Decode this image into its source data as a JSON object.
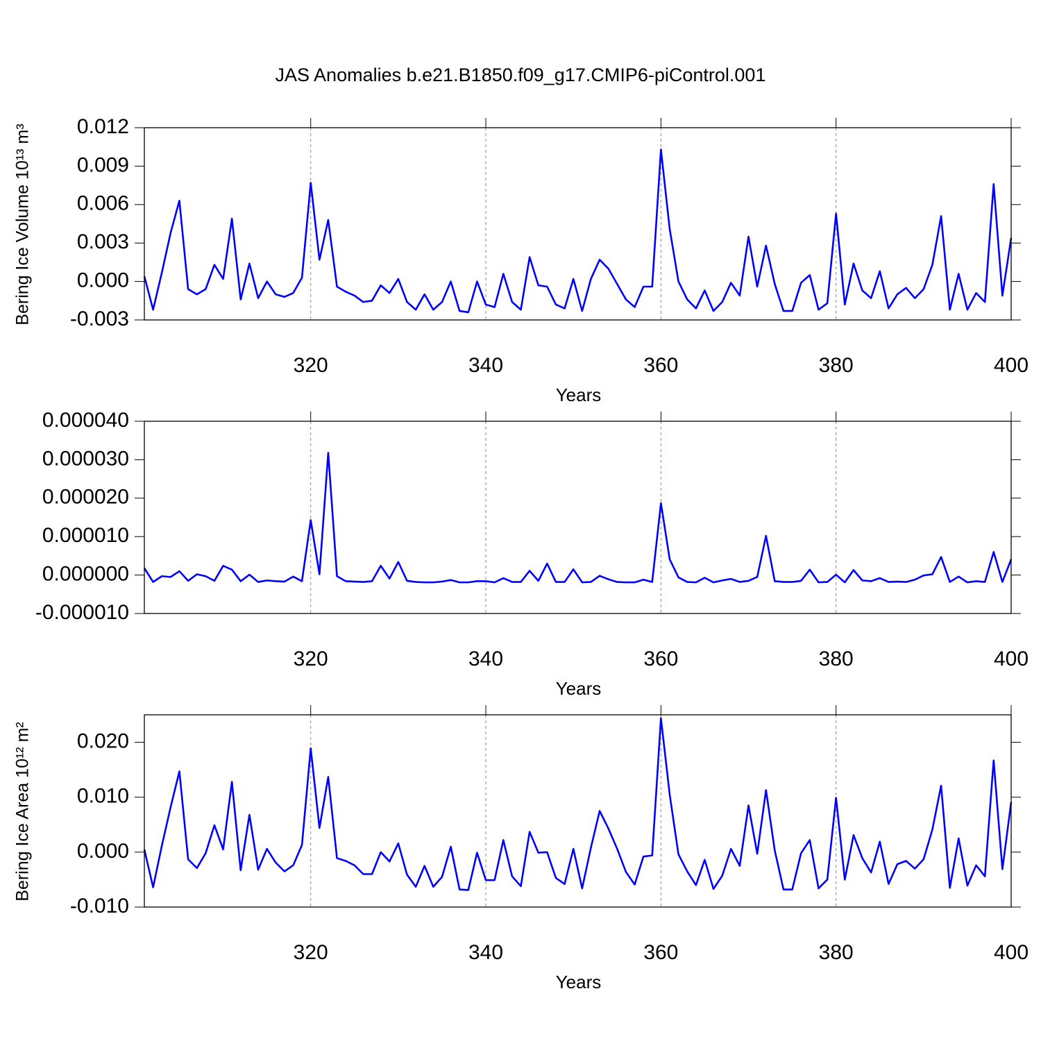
{
  "chart_data": [
    {
      "type": "line",
      "title": "JAS Anomalies b.e21.B1850.f09_g17.CMIP6-piControl.001",
      "x_label": "Years",
      "y_label": "Bering Ice Volume 10¹³ m³",
      "color": "#0000ff",
      "grid": "x",
      "xlim": [
        301,
        400
      ],
      "xticks": [
        320,
        340,
        360,
        380,
        400
      ],
      "ylim": [
        -0.003,
        0.012
      ],
      "yticks": [
        {
          "value": -0.003,
          "label": "-0.003"
        },
        {
          "value": 0,
          "label": "0.000"
        },
        0.003,
        0.006,
        0.009,
        0.012
      ],
      "x": [
        301,
        302,
        303,
        304,
        305,
        306,
        307,
        308,
        309,
        310,
        311,
        312,
        313,
        314,
        315,
        316,
        317,
        318,
        319,
        320,
        321,
        322,
        323,
        324,
        325,
        326,
        327,
        328,
        329,
        330,
        331,
        332,
        333,
        334,
        335,
        336,
        337,
        338,
        339,
        340,
        341,
        342,
        343,
        344,
        345,
        346,
        347,
        348,
        349,
        350,
        351,
        352,
        353,
        354,
        355,
        356,
        357,
        358,
        359,
        360,
        361,
        362,
        363,
        364,
        365,
        366,
        367,
        368,
        369,
        370,
        371,
        372,
        373,
        374,
        375,
        376,
        377,
        378,
        379,
        380,
        381,
        382,
        383,
        384,
        385,
        386,
        387,
        388,
        389,
        390,
        391,
        392,
        393,
        394,
        395,
        396,
        397,
        398,
        399,
        400
      ],
      "values": [
        0.0004,
        -0.0022,
        0.0007,
        0.0038,
        0.0063,
        -0.0006,
        -0.001,
        -0.0006,
        0.0013,
        0.0002,
        0.0049,
        -0.0014,
        0.0014,
        -0.0013,
        0.0,
        -0.001,
        -0.0012,
        -0.0009,
        0.0003,
        0.0077,
        0.0017,
        0.0048,
        -0.0004,
        -0.0008,
        -0.0011,
        -0.0016,
        -0.0015,
        -0.0003,
        -0.0009,
        0.0002,
        -0.0016,
        -0.0022,
        -0.001,
        -0.0022,
        -0.0016,
        0.0,
        -0.0023,
        -0.0024,
        0.0,
        -0.0018,
        -0.002,
        0.0006,
        -0.0016,
        -0.0022,
        0.0019,
        -0.0003,
        -0.0004,
        -0.0018,
        -0.0021,
        0.0002,
        -0.0023,
        0.0002,
        0.0017,
        0.001,
        -0.0002,
        -0.0014,
        -0.002,
        -0.0004,
        -0.0004,
        0.0103,
        0.0041,
        0.0,
        -0.0014,
        -0.0021,
        -0.0007,
        -0.0023,
        -0.0016,
        -0.0001,
        -0.0011,
        0.0035,
        -0.0004,
        0.0028,
        -0.0002,
        -0.0023,
        -0.0023,
        -0.0001,
        0.0005,
        -0.0022,
        -0.0017,
        0.0053,
        -0.0018,
        0.0014,
        -0.0007,
        -0.0013,
        0.0008,
        -0.0021,
        -0.001,
        -0.0005,
        -0.0013,
        -0.0006,
        0.0013,
        0.0051,
        -0.0022,
        0.0006,
        -0.0022,
        -0.0009,
        -0.0016,
        0.0076,
        -0.0011,
        0.0034
      ]
    },
    {
      "type": "line",
      "x_label": "Years",
      "color": "#0000ff",
      "grid": "x",
      "xlim": [
        301,
        400
      ],
      "xticks": [
        320,
        340,
        360,
        380,
        400
      ],
      "ylim": [
        -1e-05,
        4e-05
      ],
      "yticks": [
        {
          "value": -1e-05,
          "label": "-0.000010"
        },
        {
          "value": 0,
          "label": "0.000000"
        },
        {
          "value": 1e-05,
          "label": "0.000010"
        },
        {
          "value": 2e-05,
          "label": "0.000020"
        },
        {
          "value": 3e-05,
          "label": "0.000030"
        },
        {
          "value": 4e-05,
          "label": "0.000040"
        }
      ],
      "x": [
        301,
        302,
        303,
        304,
        305,
        306,
        307,
        308,
        309,
        310,
        311,
        312,
        313,
        314,
        315,
        316,
        317,
        318,
        319,
        320,
        321,
        322,
        323,
        324,
        325,
        326,
        327,
        328,
        329,
        330,
        331,
        332,
        333,
        334,
        335,
        336,
        337,
        338,
        339,
        340,
        341,
        342,
        343,
        344,
        345,
        346,
        347,
        348,
        349,
        350,
        351,
        352,
        353,
        354,
        355,
        356,
        357,
        358,
        359,
        360,
        361,
        362,
        363,
        364,
        365,
        366,
        367,
        368,
        369,
        370,
        371,
        372,
        373,
        374,
        375,
        376,
        377,
        378,
        379,
        380,
        381,
        382,
        383,
        384,
        385,
        386,
        387,
        388,
        389,
        390,
        391,
        392,
        393,
        394,
        395,
        396,
        397,
        398,
        399,
        400
      ],
      "values": [
        1.8e-06,
        -1.8e-06,
        -3e-07,
        -5e-07,
        1e-06,
        -1.5e-06,
        2e-07,
        -3e-07,
        -1.5e-06,
        2.4e-06,
        1.4e-06,
        -1.6e-06,
        1e-07,
        -1.8e-06,
        -1.4e-06,
        -1.6e-06,
        -1.7e-06,
        -4e-07,
        -1.6e-06,
        1.43e-05,
        2e-07,
        3.18e-05,
        -3e-07,
        -1.6e-06,
        -1.7e-06,
        -1.8e-06,
        -1.6e-06,
        2.4e-06,
        -9e-07,
        3.4e-06,
        -1.5e-06,
        -1.8e-06,
        -1.9e-06,
        -1.9e-06,
        -1.7e-06,
        -1.3e-06,
        -1.9e-06,
        -1.9e-06,
        -1.6e-06,
        -1.6e-06,
        -1.9e-06,
        -8e-07,
        -1.8e-06,
        -1.8e-06,
        1.1e-06,
        -1.5e-06,
        3e-06,
        -1.8e-06,
        -1.8e-06,
        1.5e-06,
        -1.9e-06,
        -1.8e-06,
        -2e-07,
        -1.1e-06,
        -1.8e-06,
        -1.9e-06,
        -1.9e-06,
        -1.2e-06,
        -1.8e-06,
        1.87e-05,
        4.1e-06,
        -6e-07,
        -1.8e-06,
        -1.9e-06,
        -7e-07,
        -1.9e-06,
        -1.4e-06,
        -1e-06,
        -1.8e-06,
        -1.5e-06,
        -5e-07,
        1.02e-05,
        -1.6e-06,
        -1.8e-06,
        -1.8e-06,
        -1.5e-06,
        1.4e-06,
        -1.9e-06,
        -1.8e-06,
        1e-07,
        -1.9e-06,
        1.3e-06,
        -1.4e-06,
        -1.6e-06,
        -8e-07,
        -1.8e-06,
        -1.7e-06,
        -1.8e-06,
        -1.2e-06,
        -1e-07,
        2e-07,
        4.7e-06,
        -1.8e-06,
        -4e-07,
        -1.9e-06,
        -1.6e-06,
        -1.8e-06,
        6e-06,
        -1.8e-06,
        4.1e-06
      ]
    },
    {
      "type": "line",
      "x_label": "Years",
      "y_label": "Bering Ice Area 10¹² m²",
      "color": "#0000ff",
      "grid": "x",
      "xlim": [
        301,
        400
      ],
      "xticks": [
        320,
        340,
        360,
        380,
        400
      ],
      "ylim": [
        -0.01,
        0.025
      ],
      "yticks": [
        {
          "value": -0.01,
          "label": "-0.010"
        },
        {
          "value": 0,
          "label": "0.000"
        },
        {
          "value": 0.01,
          "label": "0.010"
        },
        {
          "value": 0.02,
          "label": "0.020"
        }
      ],
      "x": [
        301,
        302,
        303,
        304,
        305,
        306,
        307,
        308,
        309,
        310,
        311,
        312,
        313,
        314,
        315,
        316,
        317,
        318,
        319,
        320,
        321,
        322,
        323,
        324,
        325,
        326,
        327,
        328,
        329,
        330,
        331,
        332,
        333,
        334,
        335,
        336,
        337,
        338,
        339,
        340,
        341,
        342,
        343,
        344,
        345,
        346,
        347,
        348,
        349,
        350,
        351,
        352,
        353,
        354,
        355,
        356,
        357,
        358,
        359,
        360,
        361,
        362,
        363,
        364,
        365,
        366,
        367,
        368,
        369,
        370,
        371,
        372,
        373,
        374,
        375,
        376,
        377,
        378,
        379,
        380,
        381,
        382,
        383,
        384,
        385,
        386,
        387,
        388,
        389,
        390,
        391,
        392,
        393,
        394,
        395,
        396,
        397,
        398,
        399,
        400
      ],
      "values": [
        0.0005,
        -0.0064,
        0.0012,
        0.0082,
        0.0147,
        -0.0013,
        -0.0029,
        -0.0002,
        0.0049,
        0.0005,
        0.0128,
        -0.0033,
        0.0068,
        -0.0032,
        0.0006,
        -0.0019,
        -0.0035,
        -0.0024,
        0.0013,
        0.0189,
        0.0044,
        0.0137,
        -0.0011,
        -0.0016,
        -0.0024,
        -0.004,
        -0.004,
        0.0,
        -0.0017,
        0.0016,
        -0.0041,
        -0.0063,
        -0.0025,
        -0.0063,
        -0.0045,
        0.001,
        -0.0068,
        -0.0069,
        -0.0001,
        -0.0051,
        -0.0051,
        0.0022,
        -0.0044,
        -0.0062,
        0.0037,
        -0.0001,
        0.0,
        -0.0047,
        -0.0058,
        0.0006,
        -0.0066,
        0.0008,
        0.0075,
        0.0043,
        0.0006,
        -0.0036,
        -0.0059,
        -0.0008,
        -0.0006,
        0.0244,
        0.0105,
        -0.0004,
        -0.0035,
        -0.006,
        -0.0014,
        -0.0067,
        -0.0043,
        0.0006,
        -0.0025,
        0.0085,
        -0.0003,
        0.0113,
        0.0003,
        -0.0068,
        -0.0068,
        -0.0002,
        0.0022,
        -0.0066,
        -0.005,
        0.0099,
        -0.005,
        0.0031,
        -0.0011,
        -0.0037,
        0.0019,
        -0.0058,
        -0.0022,
        -0.0016,
        -0.003,
        -0.0013,
        0.0041,
        0.0121,
        -0.0065,
        0.0025,
        -0.0061,
        -0.0024,
        -0.0044,
        0.0167,
        -0.0031,
        0.0091
      ]
    }
  ]
}
